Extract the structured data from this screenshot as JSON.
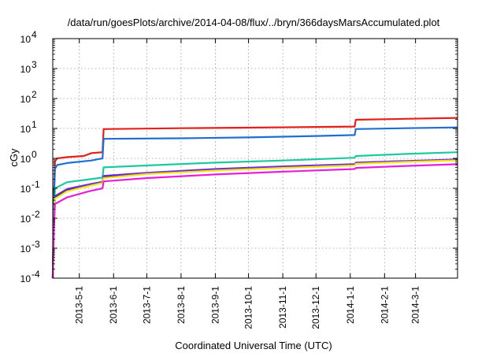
{
  "chart_data": {
    "type": "line",
    "title": "/data/run/goesPlots/archive/2014-04-08/flux/../bryn/366daysMarsAccumulated.plot",
    "xlabel": "Coordinated Universal Time (UTC)",
    "ylabel": "cGy",
    "x_scale": "time",
    "y_scale": "log",
    "xlim": [
      "2013-04-07",
      "2014-04-08"
    ],
    "ylim": [
      0.0001,
      10000
    ],
    "grid": true,
    "x_ticks": [
      "2013-5-1",
      "2013-6-1",
      "2013-7-1",
      "2013-8-1",
      "2013-9-1",
      "2013-10-1",
      "2013-11-1",
      "2013-12-1",
      "2014-1-1",
      "2014-2-1",
      "2014-3-1"
    ],
    "y_ticks": [
      {
        "value": 0.0001,
        "base": "10",
        "exp": "-4"
      },
      {
        "value": 0.001,
        "base": "10",
        "exp": "-3"
      },
      {
        "value": 0.01,
        "base": "10",
        "exp": "-2"
      },
      {
        "value": 0.1,
        "base": "10",
        "exp": "-1"
      },
      {
        "value": 1,
        "base": "10",
        "exp": "0"
      },
      {
        "value": 10,
        "base": "10",
        "exp": "1"
      },
      {
        "value": 100,
        "base": "10",
        "exp": "2"
      },
      {
        "value": 1000,
        "base": "10",
        "exp": "3"
      },
      {
        "value": 10000,
        "base": "10",
        "exp": "4"
      }
    ],
    "series": [
      {
        "color": "#e3201b",
        "points": [
          [
            "2013-04-07",
            0.0001
          ],
          [
            "2013-04-08",
            0.05
          ],
          [
            "2013-04-09",
            0.8
          ],
          [
            "2013-04-11",
            1.0
          ],
          [
            "2013-04-20",
            1.1
          ],
          [
            "2013-05-05",
            1.2
          ],
          [
            "2013-05-12",
            1.5
          ],
          [
            "2013-05-22",
            1.6
          ],
          [
            "2013-05-23",
            9.5
          ],
          [
            "2013-08-01",
            10.2
          ],
          [
            "2013-10-01",
            10.6
          ],
          [
            "2013-12-01",
            11.2
          ],
          [
            "2014-01-05",
            11.6
          ],
          [
            "2014-01-06",
            19.5
          ],
          [
            "2014-02-20",
            21.0
          ],
          [
            "2014-04-08",
            22.5
          ]
        ]
      },
      {
        "color": "#1f6fd0",
        "points": [
          [
            "2013-04-07",
            0.0001
          ],
          [
            "2013-04-08",
            0.03
          ],
          [
            "2013-04-09",
            0.45
          ],
          [
            "2013-04-11",
            0.6
          ],
          [
            "2013-04-20",
            0.7
          ],
          [
            "2013-05-12",
            0.85
          ],
          [
            "2013-05-22",
            1.0
          ],
          [
            "2013-05-23",
            4.5
          ],
          [
            "2013-08-01",
            4.7
          ],
          [
            "2013-10-01",
            5.0
          ],
          [
            "2013-12-01",
            5.6
          ],
          [
            "2014-01-05",
            6.0
          ],
          [
            "2014-01-06",
            9.5
          ],
          [
            "2014-02-20",
            10.2
          ],
          [
            "2014-04-08",
            10.8
          ]
        ]
      },
      {
        "color": "#1ec8a0",
        "points": [
          [
            "2013-04-07",
            0.0001
          ],
          [
            "2013-04-08",
            0.01
          ],
          [
            "2013-04-09",
            0.1
          ],
          [
            "2013-04-20",
            0.16
          ],
          [
            "2013-05-10",
            0.2
          ],
          [
            "2013-05-22",
            0.23
          ],
          [
            "2013-05-23",
            0.5
          ],
          [
            "2013-07-01",
            0.58
          ],
          [
            "2013-09-01",
            0.72
          ],
          [
            "2013-11-01",
            0.85
          ],
          [
            "2014-01-05",
            1.05
          ],
          [
            "2014-01-06",
            1.2
          ],
          [
            "2014-02-20",
            1.4
          ],
          [
            "2014-04-08",
            1.6
          ]
        ]
      },
      {
        "color": "#141414",
        "points": [
          [
            "2013-04-07",
            0.0001
          ],
          [
            "2013-04-08",
            0.006
          ],
          [
            "2013-04-09",
            0.05
          ],
          [
            "2013-04-20",
            0.09
          ],
          [
            "2013-05-10",
            0.13
          ],
          [
            "2013-05-22",
            0.16
          ],
          [
            "2013-05-23",
            0.25
          ],
          [
            "2013-07-01",
            0.32
          ],
          [
            "2013-09-01",
            0.42
          ],
          [
            "2013-11-01",
            0.52
          ],
          [
            "2014-01-05",
            0.62
          ],
          [
            "2014-01-06",
            0.7
          ],
          [
            "2014-02-20",
            0.8
          ],
          [
            "2014-04-08",
            0.9
          ]
        ]
      },
      {
        "color": "#6c2fd6",
        "points": [
          [
            "2013-04-07",
            0.0001
          ],
          [
            "2013-04-08",
            0.006
          ],
          [
            "2013-04-09",
            0.055
          ],
          [
            "2013-04-20",
            0.095
          ],
          [
            "2013-05-10",
            0.135
          ],
          [
            "2013-05-22",
            0.165
          ],
          [
            "2013-05-23",
            0.26
          ],
          [
            "2013-07-01",
            0.33
          ],
          [
            "2013-09-01",
            0.44
          ],
          [
            "2013-11-01",
            0.54
          ],
          [
            "2014-01-05",
            0.64
          ],
          [
            "2014-01-06",
            0.72
          ],
          [
            "2014-02-20",
            0.82
          ],
          [
            "2014-04-08",
            0.92
          ]
        ]
      },
      {
        "color": "#f4e21c",
        "points": [
          [
            "2013-04-07",
            0.0001
          ],
          [
            "2013-04-08",
            0.005
          ],
          [
            "2013-04-09",
            0.045
          ],
          [
            "2013-04-20",
            0.08
          ],
          [
            "2013-05-10",
            0.12
          ],
          [
            "2013-05-22",
            0.15
          ],
          [
            "2013-05-23",
            0.22
          ],
          [
            "2013-07-01",
            0.3
          ],
          [
            "2013-09-01",
            0.39
          ],
          [
            "2013-11-01",
            0.48
          ],
          [
            "2014-01-05",
            0.58
          ],
          [
            "2014-01-06",
            0.66
          ],
          [
            "2014-02-20",
            0.76
          ],
          [
            "2014-04-08",
            0.86
          ]
        ]
      },
      {
        "color": "#e81fd8",
        "points": [
          [
            "2013-04-07",
            0.0001
          ],
          [
            "2013-04-08",
            0.004
          ],
          [
            "2013-04-09",
            0.03
          ],
          [
            "2013-04-20",
            0.05
          ],
          [
            "2013-05-10",
            0.08
          ],
          [
            "2013-05-22",
            0.1
          ],
          [
            "2013-05-23",
            0.17
          ],
          [
            "2013-07-01",
            0.22
          ],
          [
            "2013-09-01",
            0.29
          ],
          [
            "2013-11-01",
            0.36
          ],
          [
            "2014-01-05",
            0.44
          ],
          [
            "2014-01-06",
            0.48
          ],
          [
            "2014-02-20",
            0.56
          ],
          [
            "2014-04-08",
            0.64
          ]
        ]
      }
    ]
  }
}
